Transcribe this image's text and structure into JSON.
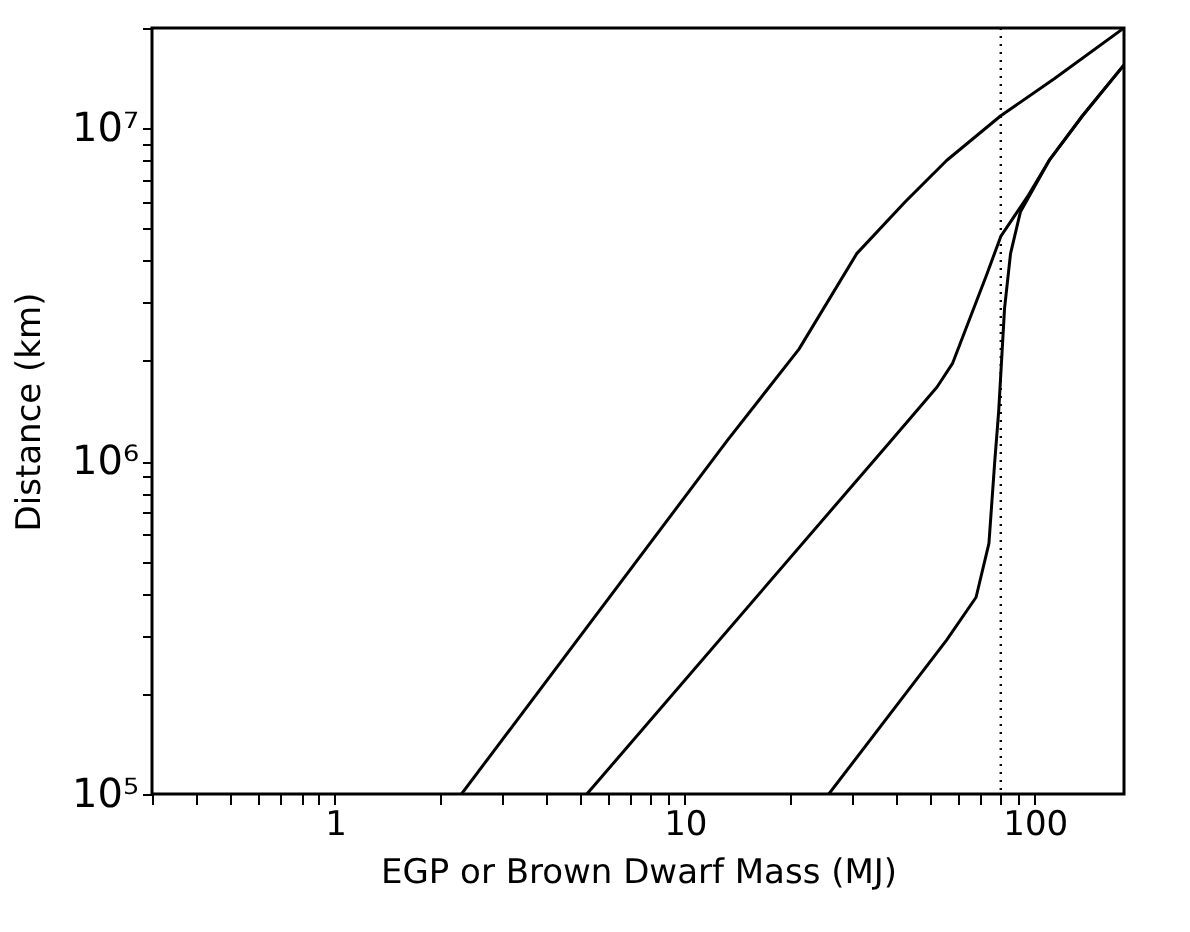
{
  "chart_data": {
    "type": "line",
    "xlabel": "EGP or Brown Dwarf Mass (MJ)",
    "ylabel": "Distance (km)",
    "log": "xy",
    "grid": false,
    "line_style": "solid",
    "marker": "none",
    "xlim": [
      0.3,
      180
    ],
    "ylim": [
      100000,
      20000000
    ],
    "xticks": [
      {
        "value": 0.3,
        "label": null
      },
      {
        "value": 0.4,
        "label": null
      },
      {
        "value": 0.5,
        "label": null
      },
      {
        "value": 0.6,
        "label": null
      },
      {
        "value": 0.7,
        "label": null
      },
      {
        "value": 0.8,
        "label": null
      },
      {
        "value": 0.9,
        "label": null
      },
      1,
      {
        "value": 2,
        "label": null
      },
      {
        "value": 3,
        "label": null
      },
      {
        "value": 4,
        "label": null
      },
      {
        "value": 5,
        "label": null
      },
      {
        "value": 6,
        "label": null
      },
      {
        "value": 7,
        "label": null
      },
      {
        "value": 8,
        "label": null
      },
      {
        "value": 9,
        "label": null
      },
      10,
      {
        "value": 20,
        "label": null
      },
      {
        "value": 30,
        "label": null
      },
      {
        "value": 40,
        "label": null
      },
      {
        "value": 50,
        "label": null
      },
      {
        "value": 60,
        "label": null
      },
      {
        "value": 70,
        "label": null
      },
      {
        "value": 80,
        "label": null
      },
      {
        "value": 90,
        "label": null
      },
      100
    ],
    "yticks": [
      {
        "value": 100000,
        "label": "10⁵"
      },
      {
        "value": 200000,
        "label": null
      },
      {
        "value": 300000,
        "label": null
      },
      {
        "value": 400000,
        "label": null
      },
      {
        "value": 500000,
        "label": null
      },
      {
        "value": 600000,
        "label": null
      },
      {
        "value": 700000,
        "label": null
      },
      {
        "value": 800000,
        "label": null
      },
      {
        "value": 900000,
        "label": null
      },
      {
        "value": 1000000,
        "label": "10⁶"
      },
      {
        "value": 2000000,
        "label": null
      },
      {
        "value": 3000000,
        "label": null
      },
      {
        "value": 4000000,
        "label": null
      },
      {
        "value": 5000000,
        "label": null
      },
      {
        "value": 6000000,
        "label": null
      },
      {
        "value": 7000000,
        "label": null
      },
      {
        "value": 8000000,
        "label": null
      },
      {
        "value": 9000000,
        "label": null
      },
      {
        "value": 10000000,
        "label": "10⁷"
      },
      {
        "value": 20000000,
        "label": null
      }
    ],
    "series": [
      {
        "color": "#000000",
        "x": [
          2.3,
          13.2,
          21.2,
          31,
          42.6,
          56,
          80,
          114,
          180
        ],
        "values": [
          100000,
          1150000,
          2170000,
          4200000,
          6000000,
          8000000,
          10900000,
          14100000,
          20000000
        ]
      },
      {
        "color": "#000000",
        "x": [
          5.25,
          38.8,
          52.6,
          58.3,
          72.9,
          80,
          96,
          110,
          137,
          180
        ],
        "values": [
          100000,
          1150000,
          1670000,
          1970000,
          3630000,
          4730000,
          6300000,
          8000000,
          10900000,
          15500000
        ]
      },
      {
        "color": "#000000",
        "x": [
          25.8,
          56,
          68,
          74,
          76.9,
          78.9,
          82,
          85.3,
          91,
          110,
          137,
          180
        ],
        "values": [
          100000,
          290000,
          390000,
          566000,
          1000000,
          1410000,
          2870000,
          4200000,
          5600000,
          8000000,
          10900000,
          15500000
        ]
      }
    ],
    "ref_lines": [
      {
        "axis": "x",
        "value": 80,
        "color": "#000000",
        "line_style": "dotted"
      }
    ]
  }
}
